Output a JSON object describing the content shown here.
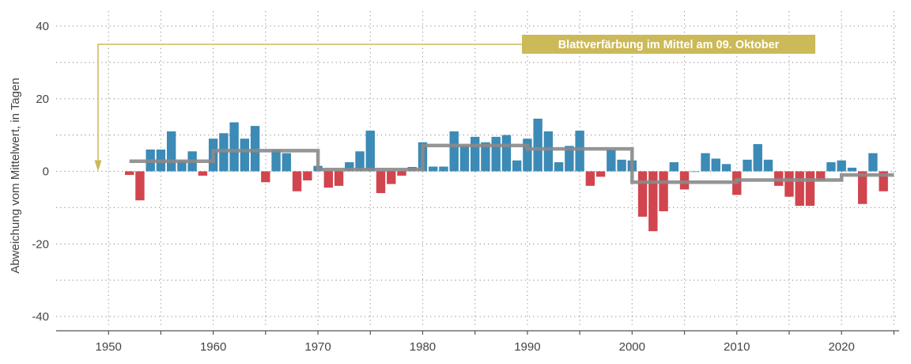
{
  "chart_data": {
    "type": "bar",
    "title": "",
    "ylabel": "Abweichung vom Mittelwert, in Tagen",
    "xlabel": "",
    "ylim": [
      -40,
      40
    ],
    "xlim": [
      1945,
      2025.5
    ],
    "yticks": [
      {
        "value": 40,
        "label": "40"
      },
      {
        "value": 20,
        "label": "20"
      },
      {
        "value": 0,
        "label": "0"
      },
      {
        "value": -20,
        "label": "-20"
      },
      {
        "value": -40,
        "label": "-40"
      }
    ],
    "xticks": [
      {
        "value": 1950,
        "label": "1950"
      },
      {
        "value": 1960,
        "label": "1960"
      },
      {
        "value": 1970,
        "label": "1970"
      },
      {
        "value": 1980,
        "label": "1980"
      },
      {
        "value": 1990,
        "label": "1990"
      },
      {
        "value": 2000,
        "label": "2000"
      },
      {
        "value": 2010,
        "label": "2010"
      },
      {
        "value": 2020,
        "label": "2020"
      }
    ],
    "colors": {
      "positive": "#3c8ab6",
      "negative": "#d1454e",
      "mean_line": "#8a8a8a",
      "annotation": "#ccb957",
      "axis": "#555555",
      "grid": "#9a9a9a"
    },
    "series": [
      {
        "name": "Abweichung",
        "years": [
          1952,
          1953,
          1954,
          1955,
          1956,
          1957,
          1958,
          1959,
          1960,
          1961,
          1962,
          1963,
          1964,
          1965,
          1966,
          1967,
          1968,
          1969,
          1970,
          1971,
          1972,
          1973,
          1974,
          1975,
          1976,
          1977,
          1978,
          1979,
          1980,
          1981,
          1982,
          1983,
          1984,
          1985,
          1986,
          1987,
          1988,
          1989,
          1990,
          1991,
          1992,
          1993,
          1994,
          1995,
          1996,
          1997,
          1998,
          1999,
          2000,
          2001,
          2002,
          2003,
          2004,
          2005,
          2006,
          2007,
          2008,
          2009,
          2010,
          2011,
          2012,
          2013,
          2014,
          2015,
          2016,
          2017,
          2018,
          2019,
          2020,
          2021,
          2022,
          2023,
          2024
        ],
        "values": [
          -1,
          -8,
          6,
          6,
          11,
          3,
          5.5,
          -1.2,
          9,
          10.5,
          13.5,
          9,
          12.5,
          -3,
          6,
          5,
          -5.5,
          -2.5,
          1.5,
          -4.5,
          -4,
          2.5,
          5.5,
          11.2,
          -6,
          -3.5,
          -1.2,
          1.2,
          8,
          1.3,
          1.3,
          11,
          7,
          9.5,
          8,
          9.5,
          10,
          3,
          9,
          14.5,
          11,
          2.5,
          7,
          11.2,
          -4,
          -1.5,
          6,
          3.2,
          3,
          -12.5,
          -16.5,
          -11,
          2.5,
          -5,
          0,
          5,
          3.5,
          2,
          -6.5,
          3.2,
          7.5,
          3.2,
          -4,
          -7,
          -9.5,
          -9.5,
          -2.5,
          2.5,
          3,
          1,
          -9,
          5,
          -5.5
        ]
      }
    ],
    "decade_means": [
      {
        "from": 1952,
        "to": 1960,
        "value": 2.8
      },
      {
        "from": 1960,
        "to": 1970,
        "value": 5.7
      },
      {
        "from": 1970,
        "to": 1980,
        "value": 0.5
      },
      {
        "from": 1980,
        "to": 1990,
        "value": 7.1
      },
      {
        "from": 1990,
        "to": 2000,
        "value": 6.2
      },
      {
        "from": 2000,
        "to": 2010,
        "value": -3.0
      },
      {
        "from": 2010,
        "to": 2020,
        "value": -2.4
      },
      {
        "from": 2020,
        "to": 2025,
        "value": -1.0
      }
    ],
    "annotation": {
      "text": "Blattverfärbung im Mittel am 09. Oktober",
      "arrow_target_year": 1949,
      "arrow_target_value": 0,
      "y_value": 35
    }
  }
}
